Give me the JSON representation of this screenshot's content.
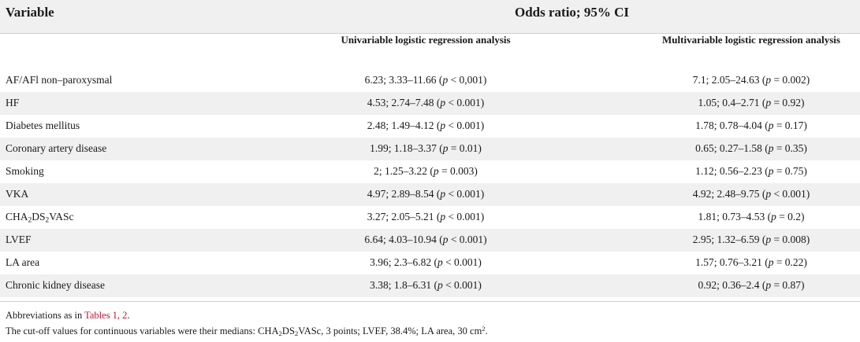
{
  "header": {
    "variable_label": "Variable",
    "odds_ratio_label": "Odds ratio; 95% CI",
    "univariable_label": "Univariable logistic regression analysis",
    "multivariable_label": "Multivariable logistic regression analysis"
  },
  "rows": [
    {
      "variable": "AF/AFl non–paroxysmal",
      "uni_pre": "6.23; 3.33–11.66 (",
      "uni_p": "p",
      "uni_post": " < 0,001)",
      "multi_pre": "7.1; 2.05–24.63 (",
      "multi_p": "p",
      "multi_post": " = 0.002)"
    },
    {
      "variable": "HF",
      "uni_pre": "4.53; 2.74–7.48 (",
      "uni_p": "p",
      "uni_post": " < 0.001)",
      "multi_pre": "1.05; 0.4–2.71 (",
      "multi_p": "p",
      "multi_post": " = 0.92)"
    },
    {
      "variable": "Diabetes mellitus",
      "uni_pre": "2.48; 1.49–4.12 (",
      "uni_p": "p",
      "uni_post": " < 0.001)",
      "multi_pre": "1.78; 0.78–4.04 (",
      "multi_p": "p",
      "multi_post": " = 0.17)"
    },
    {
      "variable": "Coronary artery disease",
      "uni_pre": "1.99; 1.18–3.37 (",
      "uni_p": "p",
      "uni_post": " = 0.01)",
      "multi_pre": "0.65; 0.27–1.58 (",
      "multi_p": "p",
      "multi_post": " = 0.35)"
    },
    {
      "variable": "Smoking",
      "uni_pre": "2; 1.25–3.22 (",
      "uni_p": "p",
      "uni_post": " = 0.003)",
      "multi_pre": "1.12; 0.56–2.23 (",
      "multi_p": "p",
      "multi_post": " = 0.75)"
    },
    {
      "variable": "VKA",
      "uni_pre": "4.97; 2.89–8.54 (",
      "uni_p": "p",
      "uni_post": " < 0.001)",
      "multi_pre": "4.92; 2.48–9.75 (",
      "multi_p": "p",
      "multi_post": " < 0.001)"
    },
    {
      "variable_a": "CHA",
      "variable_s1": "2",
      "variable_b": "DS",
      "variable_s2": "2",
      "variable_c": "VASc",
      "uni_pre": "3.27; 2.05–5.21 (",
      "uni_p": "p",
      "uni_post": " < 0.001)",
      "multi_pre": "1.81; 0.73–4.53 (",
      "multi_p": "p",
      "multi_post": " = 0.2)"
    },
    {
      "variable": "LVEF",
      "uni_pre": "6.64; 4.03–10.94 (",
      "uni_p": "p",
      "uni_post": " < 0.001)",
      "multi_pre": "2.95; 1.32–6.59 (",
      "multi_p": "p",
      "multi_post": " = 0.008)"
    },
    {
      "variable": "LA area",
      "uni_pre": "3.96; 2.3–6.82 (",
      "uni_p": "p",
      "uni_post": " < 0.001)",
      "multi_pre": "1.57; 0.76–3.21 (",
      "multi_p": "p",
      "multi_post": " = 0.22)"
    },
    {
      "variable": "Chronic kidney disease",
      "uni_pre": "3.38; 1.8–6.31 (",
      "uni_p": "p",
      "uni_post": " < 0.001)",
      "multi_pre": "0.92; 0.36–2.4 (",
      "multi_p": "p",
      "multi_post": " = 0.87)"
    }
  ],
  "footnotes": {
    "abbrev_prefix": "Abbreviations as in ",
    "abbrev_link": "Tables 1, 2",
    "abbrev_suffix": ".",
    "cutoff_a": "The cut-off values for continuous variables were their medians: CHA",
    "cutoff_s1": "2",
    "cutoff_b": "DS",
    "cutoff_s2": "2",
    "cutoff_c": "VASc, 3 points; LVEF, 38.4%; LA area, 30 cm",
    "cutoff_sup": "2",
    "cutoff_d": "."
  }
}
